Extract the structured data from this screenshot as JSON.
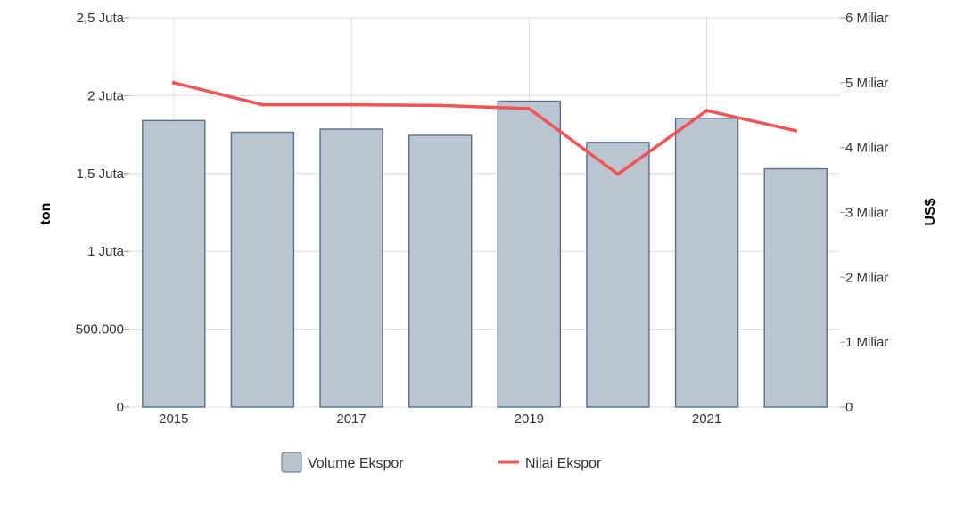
{
  "chart_data": {
    "type": "bar",
    "x": [
      2015,
      2016,
      2017,
      2018,
      2019,
      2020,
      2021,
      2022
    ],
    "x_tick_labels": [
      "2015",
      "2017",
      "2019",
      "2021"
    ],
    "x_tick_values": [
      2015,
      2017,
      2019,
      2021
    ],
    "ylabel": "ton",
    "y2label": "US$",
    "ylim": [
      0,
      2500000
    ],
    "y2lim": [
      0,
      6000000000
    ],
    "y_ticks": [
      {
        "value": 0,
        "label": "0"
      },
      {
        "value": 500000,
        "label": "500.000"
      },
      {
        "value": 1000000,
        "label": "1 Juta"
      },
      {
        "value": 1500000,
        "label": "1,5 Juta"
      },
      {
        "value": 2000000,
        "label": "2 Juta"
      },
      {
        "value": 2500000,
        "label": "2,5 Juta"
      }
    ],
    "y2_ticks": [
      {
        "value": 0,
        "label": "0"
      },
      {
        "value": 1000000000,
        "label": "1 Miliar"
      },
      {
        "value": 2000000000,
        "label": "2 Miliar"
      },
      {
        "value": 3000000000,
        "label": "3 Miliar"
      },
      {
        "value": 4000000000,
        "label": "4 Miliar"
      },
      {
        "value": 5000000000,
        "label": "5 Miliar"
      },
      {
        "value": 6000000000,
        "label": "6 Miliar"
      }
    ],
    "grid": true,
    "legend_position": "bottom",
    "series": [
      {
        "name": "Volume Ekspor",
        "type": "bar",
        "axis": "left",
        "color": "#bac4d0",
        "stroke": "#5b6f8c",
        "values": [
          1840000,
          1765000,
          1785000,
          1745000,
          1965000,
          1700000,
          1855000,
          1530000
        ]
      },
      {
        "name": "Nilai Ekspor",
        "type": "line",
        "axis": "right",
        "color": "#f05454",
        "values": [
          5000000000,
          4660000000,
          4660000000,
          4650000000,
          4600000000,
          3590000000,
          4570000000,
          4260000000
        ]
      }
    ]
  }
}
